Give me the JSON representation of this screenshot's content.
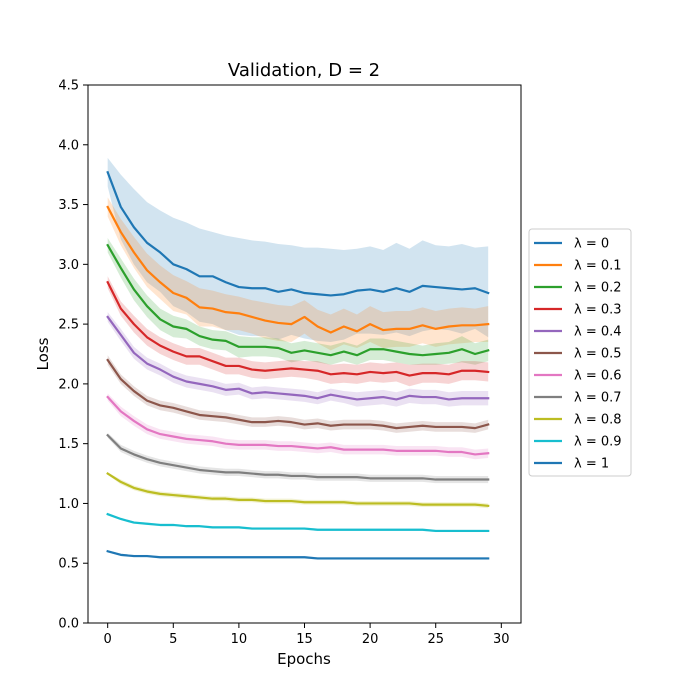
{
  "chart_data": {
    "type": "line",
    "title": "Validation, D = 2",
    "xlabel": "Epochs",
    "ylabel": "Loss",
    "xlim": [
      -1.5,
      31.5
    ],
    "ylim": [
      0.0,
      4.5
    ],
    "xticks": [
      0,
      5,
      10,
      15,
      20,
      25,
      30
    ],
    "yticks": [
      0.0,
      0.5,
      1.0,
      1.5,
      2.0,
      2.5,
      3.0,
      3.5,
      4.0,
      4.5
    ],
    "xtick_labels": [
      "0",
      "5",
      "10",
      "15",
      "20",
      "25",
      "30"
    ],
    "ytick_labels": [
      "0.0",
      "0.5",
      "1.0",
      "1.5",
      "2.0",
      "2.5",
      "3.0",
      "3.5",
      "4.0",
      "4.5"
    ],
    "legend_position": "outside-right",
    "grid": false,
    "x": [
      0,
      1,
      2,
      3,
      4,
      5,
      6,
      7,
      8,
      9,
      10,
      11,
      12,
      13,
      14,
      15,
      16,
      17,
      18,
      19,
      20,
      21,
      22,
      23,
      24,
      25,
      26,
      27,
      28,
      29
    ],
    "series": [
      {
        "name": "λ = 0",
        "color": "#1f77b4",
        "band_color": "#1f77b4",
        "values": [
          3.77,
          3.48,
          3.31,
          3.18,
          3.1,
          3.0,
          2.96,
          2.9,
          2.9,
          2.85,
          2.81,
          2.8,
          2.8,
          2.77,
          2.79,
          2.76,
          2.75,
          2.74,
          2.75,
          2.78,
          2.79,
          2.77,
          2.8,
          2.77,
          2.82,
          2.81,
          2.8,
          2.79,
          2.8,
          2.76
        ],
        "upper": [
          3.89,
          3.75,
          3.63,
          3.52,
          3.45,
          3.39,
          3.35,
          3.3,
          3.27,
          3.24,
          3.22,
          3.2,
          3.19,
          3.17,
          3.16,
          3.14,
          3.14,
          3.13,
          3.12,
          3.13,
          3.15,
          3.12,
          3.18,
          3.13,
          3.2,
          3.16,
          3.15,
          3.17,
          3.14,
          3.15
        ],
        "lower": [
          3.65,
          3.21,
          3.0,
          2.85,
          2.77,
          2.65,
          2.6,
          2.52,
          2.5,
          2.45,
          2.41,
          2.4,
          2.4,
          2.37,
          2.41,
          2.38,
          2.36,
          2.35,
          2.37,
          2.42,
          2.42,
          2.41,
          2.43,
          2.4,
          2.44,
          2.46,
          2.45,
          2.42,
          2.46,
          2.39
        ]
      },
      {
        "name": "λ = 0.1",
        "color": "#ff7f0e",
        "band_color": "#ff7f0e",
        "values": [
          3.48,
          3.27,
          3.1,
          2.95,
          2.85,
          2.76,
          2.72,
          2.64,
          2.63,
          2.6,
          2.59,
          2.56,
          2.53,
          2.51,
          2.5,
          2.56,
          2.48,
          2.43,
          2.48,
          2.44,
          2.5,
          2.45,
          2.46,
          2.46,
          2.49,
          2.46,
          2.48,
          2.49,
          2.49,
          2.5
        ],
        "upper": [
          3.56,
          3.38,
          3.23,
          3.09,
          2.99,
          2.91,
          2.86,
          2.8,
          2.78,
          2.75,
          2.73,
          2.7,
          2.68,
          2.66,
          2.65,
          2.7,
          2.62,
          2.58,
          2.63,
          2.58,
          2.65,
          2.6,
          2.61,
          2.61,
          2.64,
          2.61,
          2.63,
          2.64,
          2.63,
          2.65
        ],
        "lower": [
          3.4,
          3.16,
          2.97,
          2.81,
          2.71,
          2.61,
          2.58,
          2.48,
          2.48,
          2.45,
          2.45,
          2.42,
          2.38,
          2.36,
          2.35,
          2.42,
          2.34,
          2.28,
          2.33,
          2.3,
          2.35,
          2.3,
          2.31,
          2.31,
          2.34,
          2.31,
          2.33,
          2.34,
          2.35,
          2.35
        ]
      },
      {
        "name": "λ = 0.2",
        "color": "#2ca02c",
        "band_color": "#2ca02c",
        "values": [
          3.16,
          2.97,
          2.79,
          2.65,
          2.54,
          2.48,
          2.46,
          2.4,
          2.37,
          2.36,
          2.31,
          2.31,
          2.31,
          2.3,
          2.26,
          2.28,
          2.26,
          2.24,
          2.27,
          2.24,
          2.29,
          2.29,
          2.27,
          2.25,
          2.24,
          2.25,
          2.26,
          2.29,
          2.25,
          2.28
        ],
        "upper": [
          3.22,
          3.05,
          2.88,
          2.74,
          2.63,
          2.57,
          2.54,
          2.48,
          2.45,
          2.44,
          2.4,
          2.39,
          2.39,
          2.38,
          2.34,
          2.36,
          2.34,
          2.32,
          2.35,
          2.32,
          2.38,
          2.38,
          2.36,
          2.34,
          2.32,
          2.34,
          2.35,
          2.4,
          2.34,
          2.37
        ],
        "lower": [
          3.1,
          2.89,
          2.7,
          2.56,
          2.45,
          2.39,
          2.38,
          2.32,
          2.29,
          2.28,
          2.22,
          2.23,
          2.23,
          2.22,
          2.18,
          2.2,
          2.18,
          2.16,
          2.19,
          2.16,
          2.2,
          2.2,
          2.18,
          2.16,
          2.16,
          2.16,
          2.17,
          2.18,
          2.16,
          2.19
        ]
      },
      {
        "name": "λ = 0.3",
        "color": "#d62728",
        "band_color": "#d62728",
        "values": [
          2.85,
          2.63,
          2.5,
          2.39,
          2.32,
          2.27,
          2.23,
          2.23,
          2.19,
          2.15,
          2.15,
          2.12,
          2.11,
          2.12,
          2.13,
          2.12,
          2.11,
          2.08,
          2.09,
          2.08,
          2.1,
          2.09,
          2.1,
          2.07,
          2.09,
          2.09,
          2.08,
          2.11,
          2.11,
          2.1
        ],
        "upper": [
          2.9,
          2.69,
          2.57,
          2.46,
          2.39,
          2.34,
          2.3,
          2.3,
          2.26,
          2.22,
          2.22,
          2.19,
          2.18,
          2.19,
          2.2,
          2.19,
          2.19,
          2.16,
          2.17,
          2.16,
          2.18,
          2.17,
          2.18,
          2.16,
          2.17,
          2.17,
          2.16,
          2.19,
          2.19,
          2.18
        ],
        "lower": [
          2.8,
          2.57,
          2.43,
          2.32,
          2.25,
          2.2,
          2.16,
          2.16,
          2.12,
          2.08,
          2.08,
          2.05,
          2.04,
          2.05,
          2.06,
          2.05,
          2.03,
          2.0,
          2.01,
          2.0,
          2.02,
          2.01,
          2.02,
          1.98,
          2.01,
          2.01,
          2.0,
          2.03,
          2.03,
          2.02
        ]
      },
      {
        "name": "λ = 0.4",
        "color": "#9467bd",
        "band_color": "#9467bd",
        "values": [
          2.56,
          2.41,
          2.26,
          2.17,
          2.12,
          2.06,
          2.02,
          2.0,
          1.98,
          1.95,
          1.96,
          1.92,
          1.93,
          1.92,
          1.91,
          1.9,
          1.88,
          1.91,
          1.89,
          1.87,
          1.88,
          1.89,
          1.87,
          1.9,
          1.89,
          1.89,
          1.87,
          1.88,
          1.88,
          1.88
        ],
        "upper": [
          2.6,
          2.46,
          2.31,
          2.22,
          2.17,
          2.11,
          2.07,
          2.05,
          2.03,
          2.0,
          2.01,
          1.97,
          1.98,
          1.97,
          1.96,
          1.95,
          1.93,
          1.96,
          1.94,
          1.93,
          1.94,
          1.95,
          1.93,
          1.96,
          1.95,
          1.95,
          1.93,
          1.94,
          1.94,
          1.94
        ],
        "lower": [
          2.52,
          2.36,
          2.21,
          2.12,
          2.07,
          2.01,
          1.97,
          1.95,
          1.93,
          1.9,
          1.91,
          1.87,
          1.88,
          1.87,
          1.86,
          1.85,
          1.83,
          1.86,
          1.84,
          1.81,
          1.82,
          1.83,
          1.81,
          1.84,
          1.83,
          1.83,
          1.81,
          1.82,
          1.82,
          1.82
        ]
      },
      {
        "name": "λ = 0.5",
        "color": "#8c564b",
        "band_color": "#8c564b",
        "values": [
          2.2,
          2.04,
          1.94,
          1.86,
          1.82,
          1.8,
          1.77,
          1.74,
          1.73,
          1.72,
          1.7,
          1.68,
          1.68,
          1.69,
          1.68,
          1.66,
          1.67,
          1.65,
          1.66,
          1.66,
          1.66,
          1.65,
          1.63,
          1.64,
          1.65,
          1.64,
          1.64,
          1.64,
          1.63,
          1.66
        ],
        "upper": [
          2.24,
          2.08,
          1.98,
          1.9,
          1.86,
          1.84,
          1.81,
          1.78,
          1.77,
          1.76,
          1.74,
          1.72,
          1.72,
          1.73,
          1.72,
          1.7,
          1.71,
          1.69,
          1.7,
          1.7,
          1.7,
          1.69,
          1.67,
          1.68,
          1.69,
          1.68,
          1.68,
          1.68,
          1.67,
          1.7
        ],
        "lower": [
          2.16,
          2.0,
          1.9,
          1.82,
          1.78,
          1.76,
          1.73,
          1.7,
          1.69,
          1.68,
          1.66,
          1.64,
          1.64,
          1.65,
          1.64,
          1.62,
          1.63,
          1.61,
          1.62,
          1.62,
          1.62,
          1.61,
          1.59,
          1.6,
          1.61,
          1.6,
          1.6,
          1.6,
          1.59,
          1.62
        ]
      },
      {
        "name": "λ = 0.6",
        "color": "#e377c2",
        "band_color": "#e377c2",
        "values": [
          1.89,
          1.77,
          1.69,
          1.62,
          1.58,
          1.56,
          1.54,
          1.53,
          1.52,
          1.5,
          1.49,
          1.49,
          1.49,
          1.48,
          1.48,
          1.47,
          1.46,
          1.47,
          1.45,
          1.45,
          1.45,
          1.45,
          1.44,
          1.44,
          1.44,
          1.44,
          1.43,
          1.43,
          1.41,
          1.42
        ],
        "upper": [
          1.92,
          1.81,
          1.73,
          1.66,
          1.62,
          1.6,
          1.58,
          1.57,
          1.56,
          1.54,
          1.53,
          1.53,
          1.53,
          1.52,
          1.52,
          1.51,
          1.5,
          1.51,
          1.49,
          1.49,
          1.49,
          1.49,
          1.48,
          1.48,
          1.48,
          1.48,
          1.47,
          1.47,
          1.45,
          1.46
        ],
        "lower": [
          1.86,
          1.73,
          1.65,
          1.58,
          1.54,
          1.52,
          1.5,
          1.49,
          1.48,
          1.46,
          1.45,
          1.45,
          1.45,
          1.44,
          1.44,
          1.43,
          1.42,
          1.43,
          1.41,
          1.41,
          1.41,
          1.41,
          1.4,
          1.4,
          1.4,
          1.4,
          1.39,
          1.39,
          1.37,
          1.38
        ]
      },
      {
        "name": "λ = 0.7",
        "color": "#7f7f7f",
        "band_color": "#7f7f7f",
        "values": [
          1.57,
          1.46,
          1.41,
          1.37,
          1.34,
          1.32,
          1.3,
          1.28,
          1.27,
          1.26,
          1.26,
          1.25,
          1.24,
          1.24,
          1.23,
          1.23,
          1.22,
          1.22,
          1.22,
          1.22,
          1.21,
          1.21,
          1.21,
          1.21,
          1.21,
          1.2,
          1.2,
          1.2,
          1.2,
          1.2
        ],
        "upper": [
          1.59,
          1.49,
          1.44,
          1.4,
          1.37,
          1.35,
          1.33,
          1.31,
          1.3,
          1.29,
          1.29,
          1.28,
          1.27,
          1.27,
          1.26,
          1.26,
          1.25,
          1.25,
          1.25,
          1.25,
          1.24,
          1.24,
          1.24,
          1.24,
          1.24,
          1.23,
          1.23,
          1.23,
          1.23,
          1.23
        ],
        "lower": [
          1.55,
          1.43,
          1.38,
          1.34,
          1.31,
          1.29,
          1.27,
          1.25,
          1.24,
          1.23,
          1.23,
          1.22,
          1.21,
          1.21,
          1.2,
          1.2,
          1.19,
          1.19,
          1.19,
          1.19,
          1.18,
          1.18,
          1.18,
          1.18,
          1.18,
          1.17,
          1.17,
          1.17,
          1.17,
          1.17
        ]
      },
      {
        "name": "λ = 0.8",
        "color": "#bcbd22",
        "band_color": "#bcbd22",
        "values": [
          1.25,
          1.18,
          1.13,
          1.1,
          1.08,
          1.07,
          1.06,
          1.05,
          1.04,
          1.04,
          1.03,
          1.03,
          1.02,
          1.02,
          1.02,
          1.01,
          1.01,
          1.01,
          1.01,
          1.0,
          1.0,
          1.0,
          1.0,
          1.0,
          0.99,
          0.99,
          0.99,
          0.99,
          0.99,
          0.98
        ],
        "upper": [
          1.26,
          1.2,
          1.15,
          1.12,
          1.1,
          1.09,
          1.08,
          1.07,
          1.06,
          1.06,
          1.05,
          1.05,
          1.04,
          1.04,
          1.04,
          1.03,
          1.03,
          1.03,
          1.03,
          1.02,
          1.02,
          1.02,
          1.02,
          1.02,
          1.01,
          1.01,
          1.01,
          1.01,
          1.01,
          1.0
        ],
        "lower": [
          1.24,
          1.16,
          1.11,
          1.08,
          1.06,
          1.05,
          1.04,
          1.03,
          1.02,
          1.02,
          1.01,
          1.01,
          1.0,
          1.0,
          1.0,
          0.99,
          0.99,
          0.99,
          0.99,
          0.98,
          0.98,
          0.98,
          0.98,
          0.98,
          0.97,
          0.97,
          0.97,
          0.97,
          0.97,
          0.96
        ]
      },
      {
        "name": "λ = 0.9",
        "color": "#17becf",
        "band_color": "#17becf",
        "values": [
          0.91,
          0.87,
          0.84,
          0.83,
          0.82,
          0.82,
          0.81,
          0.81,
          0.8,
          0.8,
          0.8,
          0.79,
          0.79,
          0.79,
          0.79,
          0.79,
          0.78,
          0.78,
          0.78,
          0.78,
          0.78,
          0.78,
          0.78,
          0.78,
          0.78,
          0.77,
          0.77,
          0.77,
          0.77,
          0.77
        ],
        "upper": [
          0.92,
          0.88,
          0.85,
          0.84,
          0.83,
          0.83,
          0.82,
          0.82,
          0.81,
          0.81,
          0.81,
          0.8,
          0.8,
          0.8,
          0.8,
          0.8,
          0.79,
          0.79,
          0.79,
          0.79,
          0.79,
          0.79,
          0.79,
          0.79,
          0.79,
          0.78,
          0.78,
          0.78,
          0.78,
          0.78
        ],
        "lower": [
          0.9,
          0.86,
          0.83,
          0.82,
          0.81,
          0.81,
          0.8,
          0.8,
          0.79,
          0.79,
          0.79,
          0.78,
          0.78,
          0.78,
          0.78,
          0.78,
          0.77,
          0.77,
          0.77,
          0.77,
          0.77,
          0.77,
          0.77,
          0.77,
          0.77,
          0.76,
          0.76,
          0.76,
          0.76,
          0.76
        ]
      },
      {
        "name": "λ = 1",
        "color": "#1f77b4",
        "band_color": "#1f77b4",
        "values": [
          0.6,
          0.57,
          0.56,
          0.56,
          0.55,
          0.55,
          0.55,
          0.55,
          0.55,
          0.55,
          0.55,
          0.55,
          0.55,
          0.55,
          0.55,
          0.55,
          0.54,
          0.54,
          0.54,
          0.54,
          0.54,
          0.54,
          0.54,
          0.54,
          0.54,
          0.54,
          0.54,
          0.54,
          0.54,
          0.54
        ],
        "upper": [
          0.61,
          0.58,
          0.57,
          0.57,
          0.56,
          0.56,
          0.56,
          0.56,
          0.56,
          0.56,
          0.56,
          0.56,
          0.56,
          0.56,
          0.56,
          0.56,
          0.55,
          0.55,
          0.55,
          0.55,
          0.55,
          0.55,
          0.55,
          0.55,
          0.55,
          0.55,
          0.55,
          0.55,
          0.55,
          0.55
        ],
        "lower": [
          0.59,
          0.56,
          0.55,
          0.55,
          0.54,
          0.54,
          0.54,
          0.54,
          0.54,
          0.54,
          0.54,
          0.54,
          0.54,
          0.54,
          0.54,
          0.54,
          0.53,
          0.53,
          0.53,
          0.53,
          0.53,
          0.53,
          0.53,
          0.53,
          0.53,
          0.53,
          0.53,
          0.53,
          0.53,
          0.53
        ]
      }
    ]
  }
}
